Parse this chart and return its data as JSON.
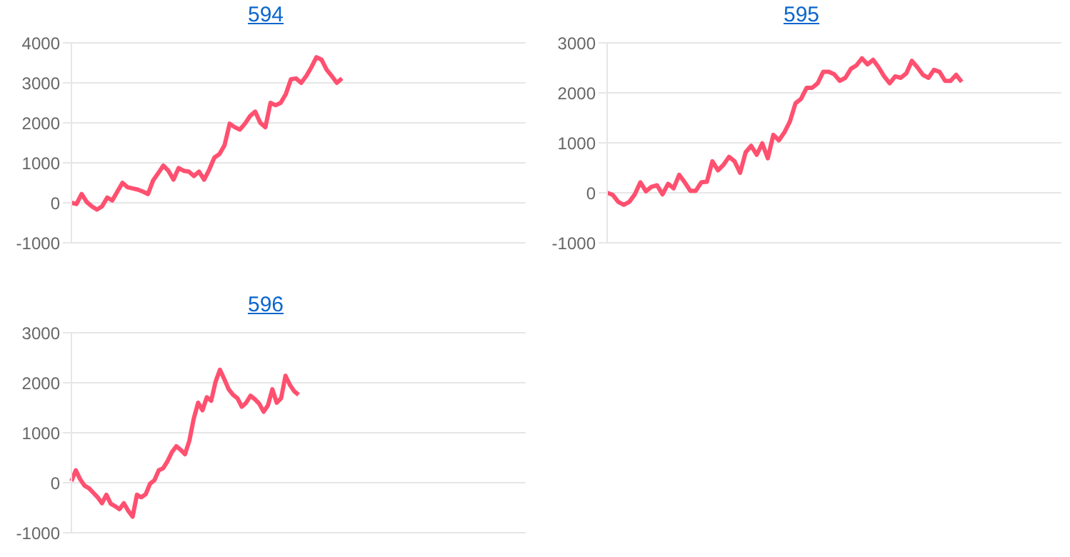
{
  "chart_data": [
    {
      "type": "line",
      "title": "594",
      "categories": [
        null,
        null,
        null,
        null,
        null,
        null,
        null,
        null,
        null,
        null,
        null,
        null,
        null,
        null,
        null,
        null,
        null,
        null,
        null,
        null,
        null,
        null,
        null,
        null,
        null,
        null,
        null,
        null,
        null,
        null,
        null,
        null,
        null,
        null,
        null,
        null,
        null,
        null,
        null,
        null,
        null,
        null,
        null,
        null,
        null,
        null,
        null,
        null,
        null,
        null,
        null,
        null,
        null,
        null,
        null,
        null,
        null,
        null,
        null,
        null,
        null,
        null,
        null,
        null,
        null,
        null,
        null,
        null,
        null,
        null,
        null,
        null,
        null,
        null,
        null,
        null,
        null,
        null,
        null,
        null,
        null,
        null,
        null,
        null,
        null,
        null,
        null,
        null,
        null,
        null
      ],
      "series": [
        {
          "color": "#ff5070",
          "values": [
            0,
            -30,
            220,
            20,
            -90,
            -170,
            -90,
            130,
            60,
            280,
            500,
            390,
            360,
            330,
            280,
            220,
            560,
            740,
            930,
            800,
            580,
            870,
            800,
            780,
            670,
            780,
            580,
            830,
            1130,
            1220,
            1440,
            1980,
            1890,
            1830,
            1980,
            2170,
            2280,
            2000,
            1890,
            2500,
            2440,
            2500,
            2720,
            3090,
            3110,
            3000,
            3170,
            3390,
            3640,
            3580,
            3330,
            3170,
            3000,
            3110,
            null,
            null,
            null,
            null,
            null,
            null,
            null,
            null,
            null,
            null,
            null,
            null,
            null,
            null,
            null,
            null,
            null,
            null,
            null,
            null,
            null,
            null,
            null,
            null,
            null,
            null,
            null,
            null,
            null,
            null,
            null,
            null,
            null,
            null,
            null,
            null
          ]
        }
      ],
      "ylim": [
        -1000,
        4000
      ],
      "yticks": [
        -1000,
        0,
        1000,
        2000,
        3000,
        4000
      ],
      "grid": "y",
      "marker": "none",
      "line_style": "solid",
      "tick_labels": "y"
    },
    {
      "type": "line",
      "title": "595",
      "categories": [
        null,
        null,
        null,
        null,
        null,
        null,
        null,
        null,
        null,
        null,
        null,
        null,
        null,
        null,
        null,
        null,
        null,
        null,
        null,
        null,
        null,
        null,
        null,
        null,
        null,
        null,
        null,
        null,
        null,
        null,
        null,
        null,
        null,
        null,
        null,
        null,
        null,
        null,
        null,
        null,
        null,
        null,
        null,
        null,
        null,
        null,
        null,
        null,
        null,
        null,
        null,
        null,
        null,
        null,
        null,
        null,
        null,
        null,
        null,
        null,
        null,
        null,
        null,
        null,
        null,
        null,
        null,
        null,
        null,
        null,
        null,
        null,
        null,
        null,
        null,
        null,
        null,
        null,
        null,
        null,
        null,
        null,
        null
      ],
      "series": [
        {
          "color": "#ff5070",
          "values": [
            0,
            -40,
            -180,
            -240,
            -180,
            -30,
            210,
            30,
            120,
            150,
            -30,
            180,
            90,
            360,
            210,
            40,
            40,
            210,
            220,
            630,
            450,
            560,
            720,
            630,
            400,
            810,
            940,
            760,
            990,
            690,
            1160,
            1050,
            1210,
            1430,
            1790,
            1880,
            2100,
            2100,
            2190,
            2420,
            2420,
            2370,
            2240,
            2300,
            2480,
            2550,
            2690,
            2570,
            2660,
            2510,
            2330,
            2190,
            2330,
            2300,
            2390,
            2640,
            2510,
            2360,
            2300,
            2460,
            2420,
            2240,
            2240,
            2360,
            2220,
            null,
            null,
            null,
            null,
            null,
            null,
            null,
            null,
            null,
            null,
            null,
            null,
            null,
            null,
            null,
            null,
            null,
            null
          ]
        }
      ],
      "ylim": [
        -1000,
        3000
      ],
      "yticks": [
        -1000,
        0,
        1000,
        2000,
        3000
      ],
      "grid": "y",
      "marker": "none",
      "line_style": "solid",
      "tick_labels": "y"
    },
    {
      "type": "line",
      "title": "596",
      "categories": [
        null,
        null,
        null,
        null,
        null,
        null,
        null,
        null,
        null,
        null,
        null,
        null,
        null,
        null,
        null,
        null,
        null,
        null,
        null,
        null,
        null,
        null,
        null,
        null,
        null,
        null,
        null,
        null,
        null,
        null,
        null,
        null,
        null,
        null,
        null,
        null,
        null,
        null,
        null,
        null,
        null,
        null,
        null,
        null,
        null,
        null,
        null,
        null,
        null,
        null,
        null,
        null,
        null,
        null,
        null,
        null,
        null,
        null,
        null,
        null,
        null,
        null,
        null,
        null,
        null,
        null,
        null,
        null,
        null,
        null,
        null,
        null,
        null,
        null,
        null,
        null,
        null,
        null,
        null,
        null,
        null,
        null,
        null,
        null,
        null,
        null,
        null,
        null,
        null,
        null,
        null,
        null,
        null,
        null,
        null,
        null,
        null,
        null,
        null,
        null,
        null,
        null,
        null,
        null,
        null
      ],
      "series": [
        {
          "color": "#ff5070",
          "values": [
            30,
            250,
            70,
            -60,
            -110,
            -200,
            -290,
            -410,
            -240,
            -420,
            -470,
            -530,
            -410,
            -560,
            -680,
            -240,
            -290,
            -230,
            -20,
            50,
            250,
            290,
            430,
            610,
            730,
            660,
            570,
            840,
            1280,
            1600,
            1450,
            1710,
            1640,
            2020,
            2260,
            2070,
            1870,
            1760,
            1690,
            1520,
            1600,
            1740,
            1670,
            1580,
            1420,
            1550,
            1870,
            1600,
            1690,
            2140,
            1960,
            1830,
            1760,
            null,
            null,
            null,
            null,
            null,
            null,
            null,
            null,
            null,
            null,
            null,
            null,
            null,
            null,
            null,
            null,
            null,
            null,
            null,
            null,
            null,
            null,
            null,
            null,
            null,
            null,
            null,
            null,
            null,
            null,
            null,
            null,
            null,
            null,
            null,
            null,
            null,
            null,
            null,
            null,
            null,
            null,
            null,
            null,
            null,
            null,
            null,
            null,
            null,
            null,
            null,
            null
          ]
        }
      ],
      "ylim": [
        -1000,
        3000
      ],
      "yticks": [
        -1000,
        0,
        1000,
        2000,
        3000
      ],
      "grid": "y",
      "marker": "none",
      "line_style": "solid",
      "tick_labels": "y"
    }
  ]
}
